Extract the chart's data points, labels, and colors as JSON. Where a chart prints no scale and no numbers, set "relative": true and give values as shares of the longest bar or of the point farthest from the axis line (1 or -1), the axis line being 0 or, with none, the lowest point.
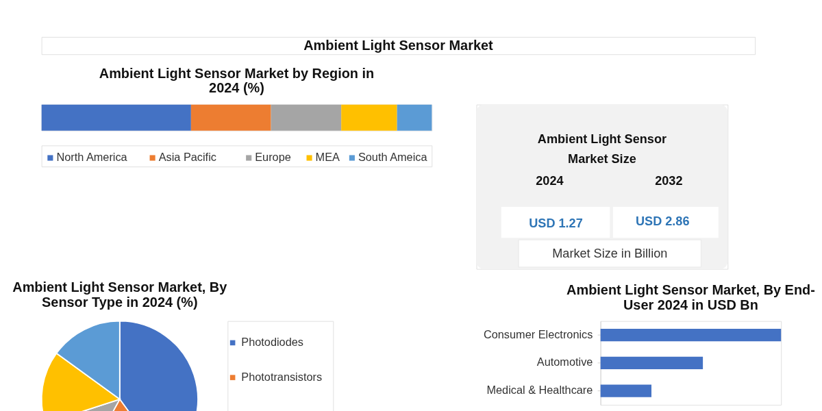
{
  "chart_data": [
    {
      "type": "other",
      "title": "Ambient Light Sensor Market"
    },
    {
      "type": "bar",
      "title": "Ambient Light Sensor Market by Region in 2024 (%)",
      "orientation": "horizontal",
      "stacked": true,
      "relative": true,
      "categories": [
        null
      ],
      "legend": "bottom",
      "series": [
        {
          "name": "North America",
          "color": "#4472c4",
          "values": [
            0.383
          ]
        },
        {
          "name": "Asia Pacific",
          "color": "#ed7d31",
          "values": [
            0.205
          ]
        },
        {
          "name": "Europe",
          "color": "#a5a5a5",
          "values": [
            0.18
          ]
        },
        {
          "name": "MEA",
          "color": "#ffc000",
          "values": [
            0.143
          ]
        },
        {
          "name": "South Ameica",
          "color": "#5b9bd5",
          "values": [
            0.089
          ]
        }
      ]
    },
    {
      "type": "other",
      "title": "Ambient Light Sensor Market Size",
      "annotations": [
        "2024",
        "2032",
        "USD 1.27",
        "USD 2.86",
        "Market Size in Billion"
      ]
    },
    {
      "type": "pie",
      "title": "Ambient Light Sensor Market, By Sensor Type in 2024 (%)",
      "legend": "right",
      "categories": [
        "Photodiodes",
        "Phototransistors",
        null,
        null,
        null
      ],
      "values": [
        40,
        18,
        12,
        15,
        15
      ],
      "colors": [
        "#4472c4",
        "#ed7d31",
        "#a5a5a5",
        "#ffc000",
        "#5b9bd5"
      ]
    },
    {
      "type": "bar",
      "title": "Ambient Light Sensor Market, By End-User 2024 in USD Bn",
      "orientation": "horizontal",
      "relative": true,
      "categories": [
        "Consumer Electronics",
        "Automotive",
        "Medical & Healthcare"
      ],
      "values": [
        1,
        0.567,
        0.282
      ],
      "color": "#4472c4"
    }
  ]
}
